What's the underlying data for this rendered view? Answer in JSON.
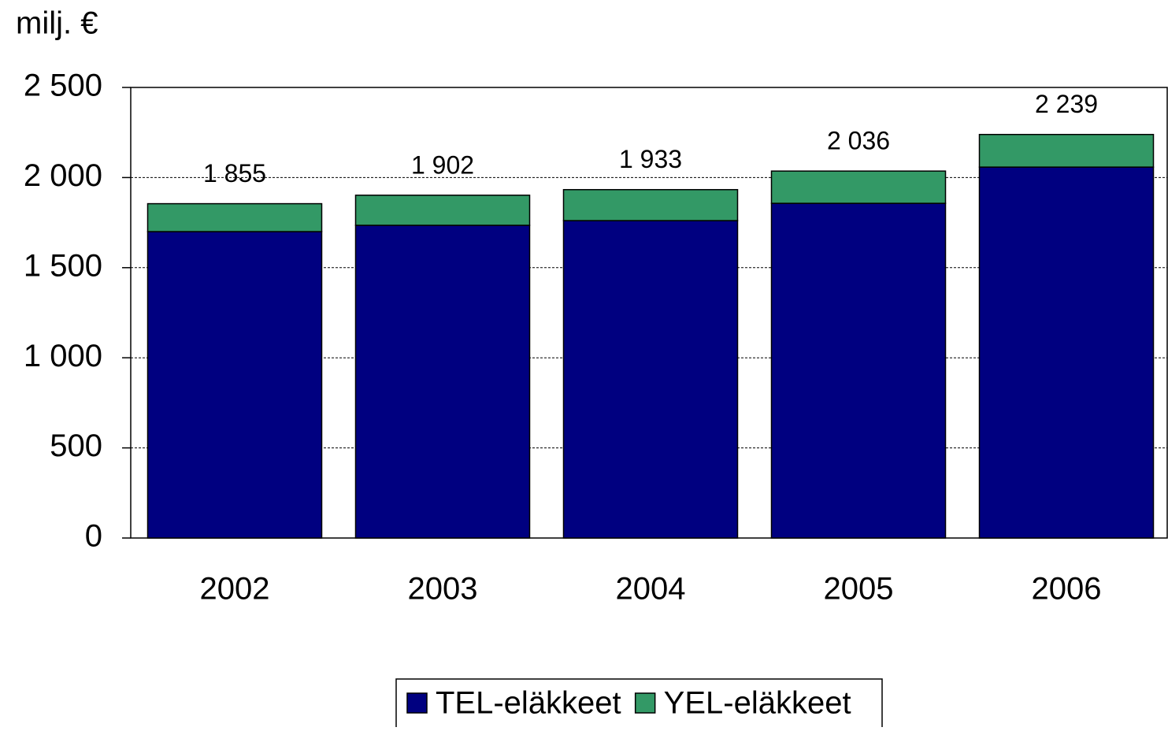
{
  "chart_data": {
    "type": "stacked_bar",
    "y_unit_label": "milj. €",
    "categories": [
      "2002",
      "2003",
      "2004",
      "2005",
      "2006"
    ],
    "series": [
      {
        "name": "TEL-eläkkeet",
        "color": "#000080",
        "values": [
          1700,
          1735,
          1761,
          1857,
          2058
        ]
      },
      {
        "name": "YEL-eläkkeet",
        "color": "#339966",
        "values": [
          155,
          167,
          172,
          179,
          181
        ]
      }
    ],
    "totals": [
      1855,
      1902,
      1933,
      2036,
      2239
    ],
    "total_labels": [
      "1 855",
      "1 902",
      "1 933",
      "2 036",
      "2 239"
    ],
    "ylim": [
      0,
      2500
    ],
    "yticks": [
      0,
      500,
      {
        "value": 1000,
        "label": "1 000"
      },
      {
        "value": 1500,
        "label": "1 500"
      },
      {
        "value": 2000,
        "label": "2 000"
      },
      {
        "value": 2500,
        "label": "2 500"
      }
    ],
    "grid": true,
    "legend": "bottom"
  }
}
